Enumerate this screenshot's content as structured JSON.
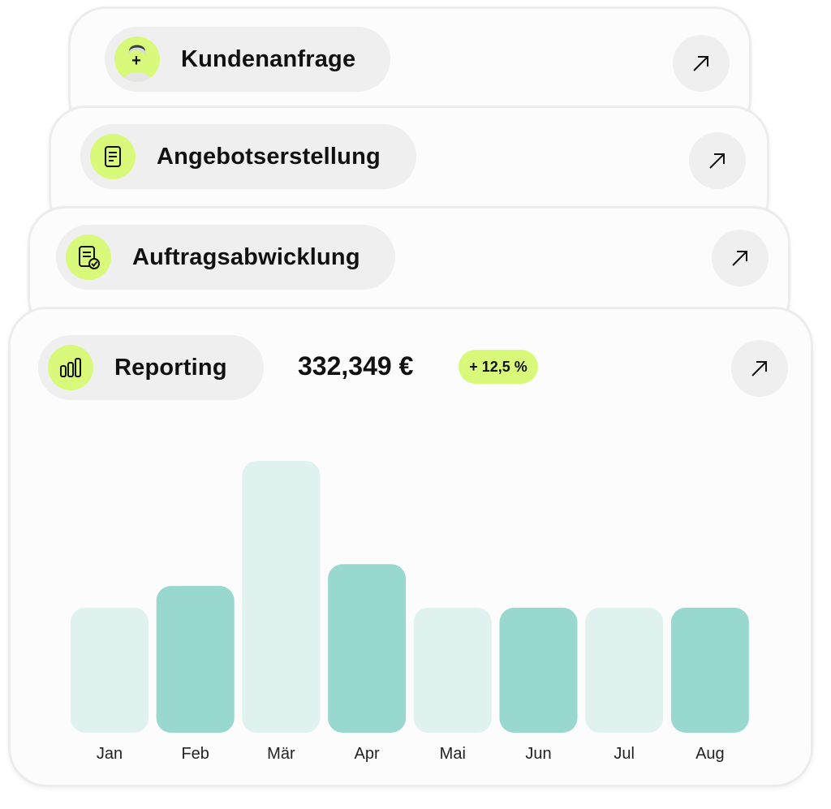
{
  "cards": [
    {
      "title": "Kundenanfrage",
      "icon": "avatar-plus-icon"
    },
    {
      "title": "Angebotserstellung",
      "icon": "document-icon"
    },
    {
      "title": "Auftragsabwicklung",
      "icon": "document-check-icon"
    },
    {
      "title": "Reporting",
      "icon": "bar-chart-icon"
    }
  ],
  "reporting": {
    "amount": "332,349 €",
    "change": "+ 12,5 %"
  },
  "colors": {
    "accent": "#d8f97a",
    "bar_dark": "#98d8cf",
    "bar_light": "#e0f2f0",
    "pill_bg": "#efefef"
  },
  "chart_data": {
    "type": "bar",
    "categories": [
      "Jan",
      "Feb",
      "Mär",
      "Apr",
      "Mai",
      "Jun",
      "Jul",
      "Aug"
    ],
    "values": [
      46,
      54,
      100,
      62,
      46,
      46,
      46,
      46
    ],
    "bar_colors": [
      "light",
      "dark",
      "light",
      "dark",
      "light",
      "dark",
      "light",
      "dark"
    ],
    "title": "",
    "xlabel": "",
    "ylabel": "",
    "ylim": [
      0,
      100
    ],
    "grid": false
  }
}
